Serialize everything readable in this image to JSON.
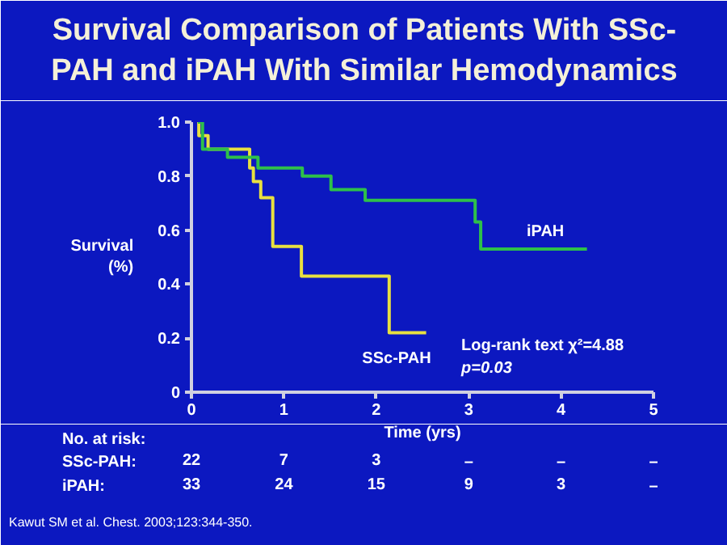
{
  "chart_data": {
    "type": "step",
    "title": "Survival Comparison of Patients With SSc-\nPAH and iPAH With Similar Hemodynamics",
    "xlabel": "Time (yrs)",
    "ylabel": "Survival\n(%)",
    "series": [
      {
        "name": "SSc-PAH",
        "color": "#e8e040",
        "x": [
          0.07,
          0.08,
          0.18,
          0.63,
          0.67,
          0.75,
          0.88,
          1.19,
          2.14,
          2.54
        ],
        "values": [
          1.0,
          0.95,
          0.9,
          0.83,
          0.78,
          0.72,
          0.54,
          0.43,
          0.22,
          0.22
        ]
      },
      {
        "name": "iPAH",
        "color": "#2ec04a",
        "x": [
          0.07,
          0.12,
          0.39,
          0.72,
          1.2,
          1.51,
          1.88,
          3.07,
          3.13,
          4.28
        ],
        "values": [
          1.0,
          0.9,
          0.87,
          0.83,
          0.8,
          0.75,
          0.71,
          0.63,
          0.53,
          0.53
        ]
      }
    ],
    "xlim": [
      0,
      5
    ],
    "ylim": [
      0,
      1
    ],
    "xticks": [
      0,
      1,
      2,
      3,
      4,
      5
    ],
    "yticks": [
      0,
      {
        "value": 0.2,
        "label": "0.2"
      },
      {
        "value": 0.4,
        "label": "0.4"
      },
      {
        "value": 0.6,
        "label": "0.6"
      },
      {
        "value": 0.8,
        "label": "0.8"
      },
      {
        "value": 1,
        "label": "1.0"
      }
    ],
    "grid": false,
    "annotations": [
      "Log-rank text χ²=4.88",
      "p=0.03",
      "No. at risk:",
      "SSc-PAH:",
      "22",
      "7",
      "3",
      "–",
      "–",
      "–",
      "iPAH:",
      "33",
      "24",
      "15",
      "9",
      "3",
      "–",
      "Kawut SM et al. Chest. 2003;123:344-350."
    ]
  }
}
